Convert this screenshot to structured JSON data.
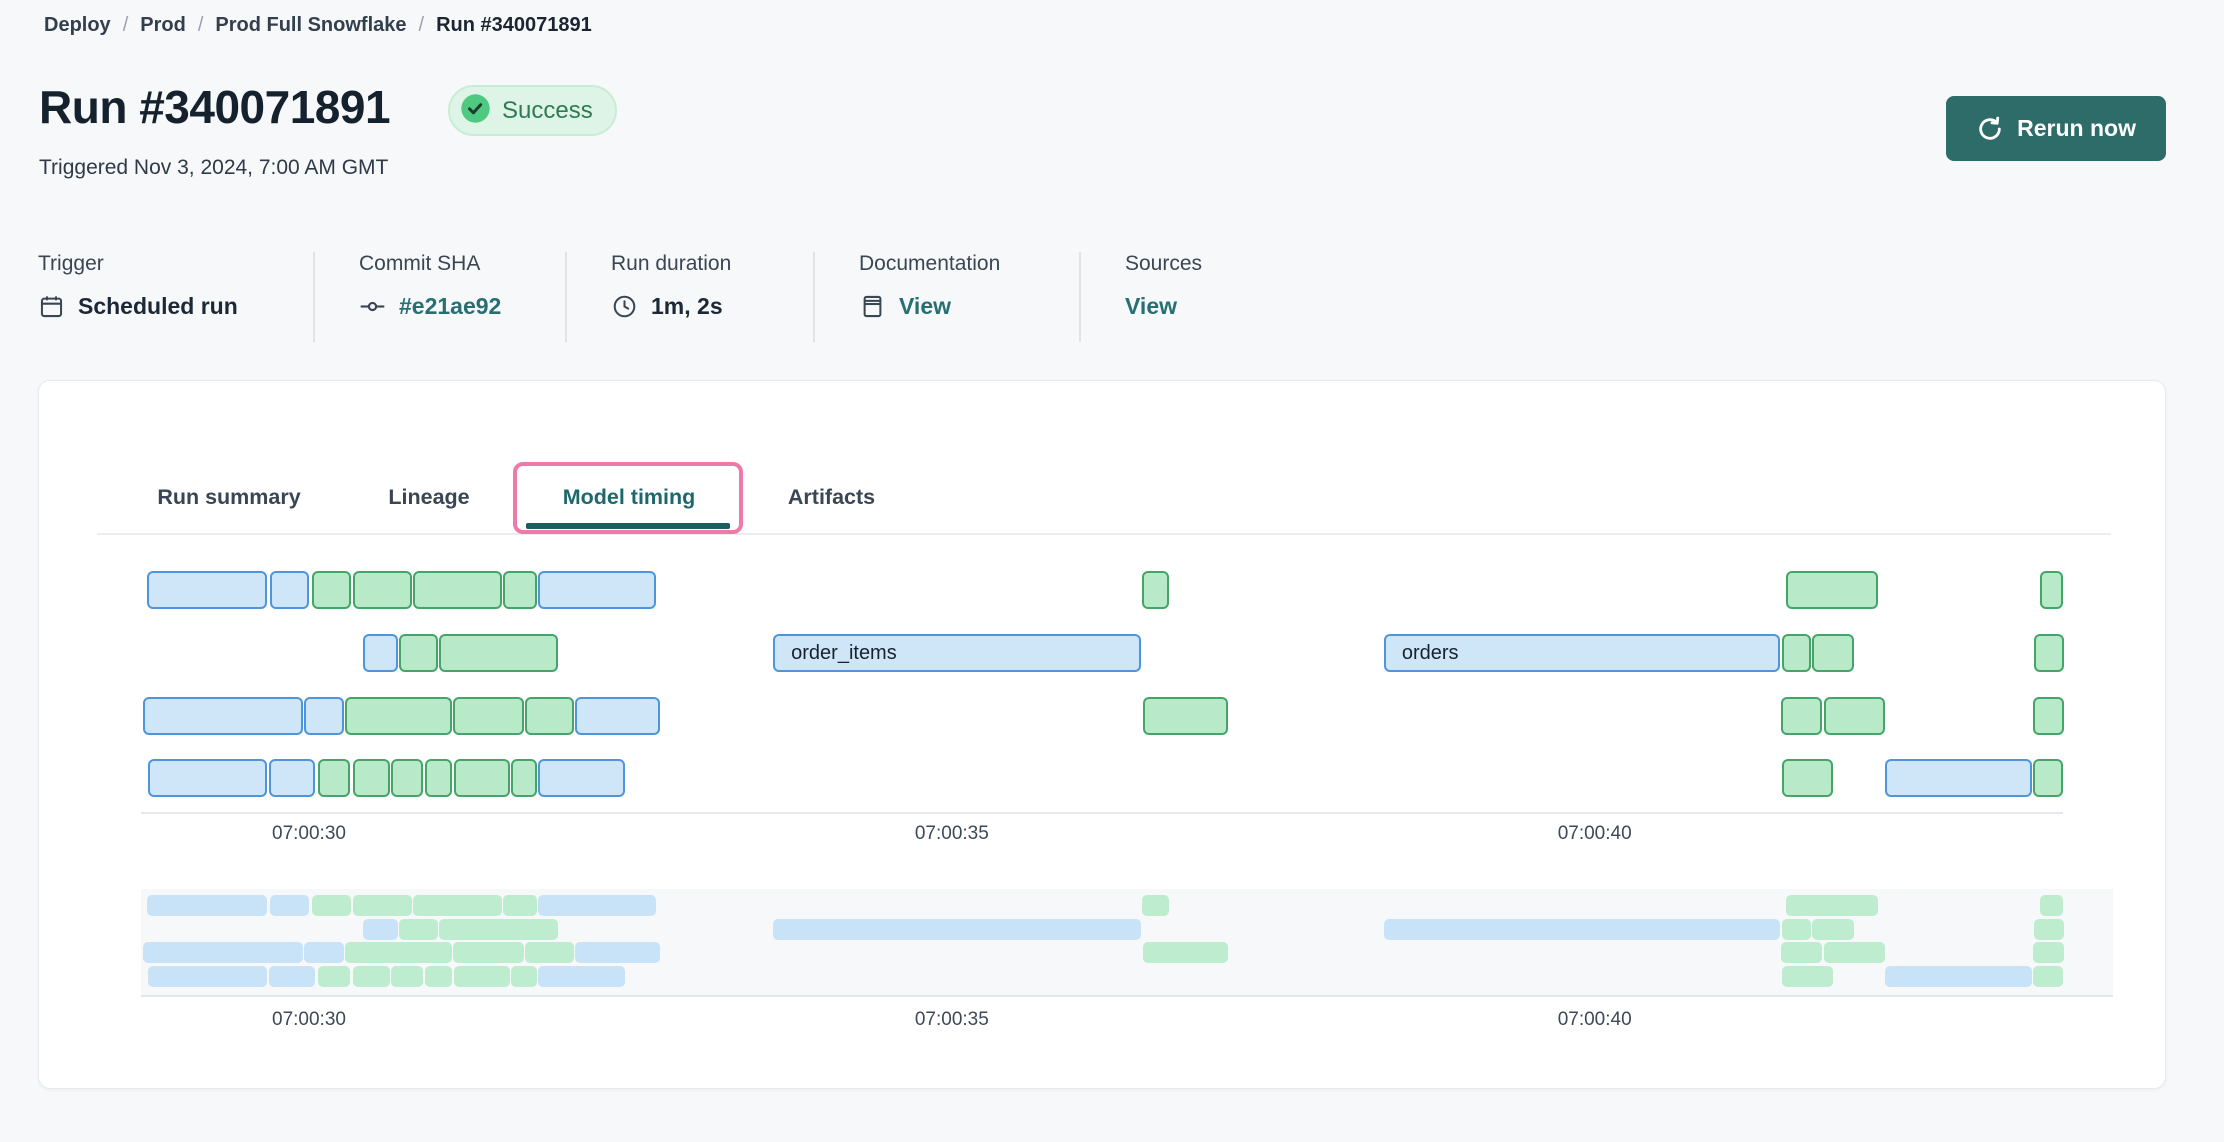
{
  "breadcrumb": {
    "separator": "/",
    "items": [
      "Deploy",
      "Prod",
      "Prod Full Snowflake",
      "Run #340071891"
    ]
  },
  "header": {
    "title": "Run #340071891",
    "status": {
      "label": "Success"
    },
    "triggered": "Triggered Nov 3, 2024, 7:00 AM GMT",
    "rerun": {
      "label": "Rerun now",
      "icon": "refresh-icon"
    }
  },
  "meta": {
    "columns": [
      {
        "label": "Trigger",
        "value": "Scheduled run",
        "icon": "calendar-icon",
        "link": false
      },
      {
        "label": "Commit SHA",
        "value": "#e21ae92",
        "icon": "commit-icon",
        "link": true
      },
      {
        "label": "Run duration",
        "value": "1m, 2s",
        "icon": "clock-icon",
        "link": false
      },
      {
        "label": "Documentation",
        "value": "View",
        "icon": "document-icon",
        "link": true
      },
      {
        "label": "Sources",
        "value": "View",
        "icon": null,
        "link": true
      }
    ]
  },
  "tabs": {
    "items": [
      {
        "label": "Run summary",
        "active": false
      },
      {
        "label": "Lineage",
        "active": false
      },
      {
        "label": "Model timing",
        "active": true
      },
      {
        "label": "Artifacts",
        "active": false
      }
    ]
  },
  "colors": {
    "page_background": "#f7f8fa",
    "accent_teal": "#266f73",
    "button_teal": "#2d6c68",
    "success_badge_bg": "#def4e7",
    "success_text": "#2e7b51",
    "success_check_circle": "#4ec97f",
    "active_tab": "#1d686c",
    "annotation_pink": "#ed7aa8",
    "bar_blue_fill": "#cfe6f8",
    "bar_blue_border": "#4e95dc",
    "bar_green_fill": "#b8eac9",
    "bar_green_border": "#45a568",
    "minimap_blue": "#c8e3f7",
    "minimap_green": "#bdedce"
  },
  "chart_data": {
    "type": "gantt",
    "title": "Model timing",
    "row_count": 4,
    "time_origin": "07:00:00",
    "x_axis": {
      "ticks": [
        {
          "label": "07:00:30",
          "t": 30
        },
        {
          "label": "07:00:35",
          "t": 35
        },
        {
          "label": "07:00:40",
          "t": 40
        }
      ],
      "range_seconds": [
        28.6,
        43.8
      ]
    },
    "minimap": {
      "present": true,
      "same_scale": true
    },
    "bars": [
      {
        "row": 0,
        "start": 28.74,
        "end": 29.67,
        "color": "blue"
      },
      {
        "row": 0,
        "start": 29.7,
        "end": 30.0,
        "color": "blue"
      },
      {
        "row": 0,
        "start": 30.02,
        "end": 30.33,
        "color": "green"
      },
      {
        "row": 0,
        "start": 30.34,
        "end": 30.8,
        "color": "green"
      },
      {
        "row": 0,
        "start": 30.81,
        "end": 31.5,
        "color": "green"
      },
      {
        "row": 0,
        "start": 31.51,
        "end": 31.77,
        "color": "green"
      },
      {
        "row": 0,
        "start": 31.78,
        "end": 32.7,
        "color": "blue"
      },
      {
        "row": 0,
        "start": 36.48,
        "end": 36.69,
        "color": "green"
      },
      {
        "row": 0,
        "start": 41.49,
        "end": 42.2,
        "color": "green"
      },
      {
        "row": 0,
        "start": 43.46,
        "end": 43.64,
        "color": "green"
      },
      {
        "row": 1,
        "start": 30.42,
        "end": 30.69,
        "color": "blue"
      },
      {
        "row": 1,
        "start": 30.7,
        "end": 31.0,
        "color": "green"
      },
      {
        "row": 1,
        "start": 31.01,
        "end": 31.94,
        "color": "green"
      },
      {
        "row": 1,
        "start": 33.61,
        "end": 36.47,
        "color": "blue",
        "label": "order_items"
      },
      {
        "row": 1,
        "start": 38.36,
        "end": 41.44,
        "color": "blue",
        "label": "orders"
      },
      {
        "row": 1,
        "start": 41.46,
        "end": 41.68,
        "color": "green"
      },
      {
        "row": 1,
        "start": 41.69,
        "end": 42.02,
        "color": "green"
      },
      {
        "row": 1,
        "start": 43.42,
        "end": 43.65,
        "color": "green"
      },
      {
        "row": 2,
        "start": 28.71,
        "end": 29.95,
        "color": "blue"
      },
      {
        "row": 2,
        "start": 29.96,
        "end": 30.27,
        "color": "blue"
      },
      {
        "row": 2,
        "start": 30.28,
        "end": 31.11,
        "color": "green"
      },
      {
        "row": 2,
        "start": 31.12,
        "end": 31.67,
        "color": "green"
      },
      {
        "row": 2,
        "start": 31.68,
        "end": 32.06,
        "color": "green"
      },
      {
        "row": 2,
        "start": 32.07,
        "end": 32.73,
        "color": "blue"
      },
      {
        "row": 2,
        "start": 36.49,
        "end": 37.15,
        "color": "green"
      },
      {
        "row": 2,
        "start": 41.45,
        "end": 41.77,
        "color": "green"
      },
      {
        "row": 2,
        "start": 41.78,
        "end": 42.26,
        "color": "green"
      },
      {
        "row": 2,
        "start": 43.41,
        "end": 43.65,
        "color": "green"
      },
      {
        "row": 3,
        "start": 28.75,
        "end": 29.67,
        "color": "blue"
      },
      {
        "row": 3,
        "start": 29.69,
        "end": 30.05,
        "color": "blue"
      },
      {
        "row": 3,
        "start": 30.07,
        "end": 30.32,
        "color": "green"
      },
      {
        "row": 3,
        "start": 30.34,
        "end": 30.63,
        "color": "green"
      },
      {
        "row": 3,
        "start": 30.64,
        "end": 30.89,
        "color": "green"
      },
      {
        "row": 3,
        "start": 30.9,
        "end": 31.11,
        "color": "green"
      },
      {
        "row": 3,
        "start": 31.13,
        "end": 31.56,
        "color": "green"
      },
      {
        "row": 3,
        "start": 31.57,
        "end": 31.77,
        "color": "green"
      },
      {
        "row": 3,
        "start": 31.78,
        "end": 32.46,
        "color": "blue"
      },
      {
        "row": 3,
        "start": 41.46,
        "end": 41.85,
        "color": "green"
      },
      {
        "row": 3,
        "start": 42.26,
        "end": 43.4,
        "color": "blue"
      },
      {
        "row": 3,
        "start": 43.41,
        "end": 43.64,
        "color": "green"
      }
    ]
  }
}
